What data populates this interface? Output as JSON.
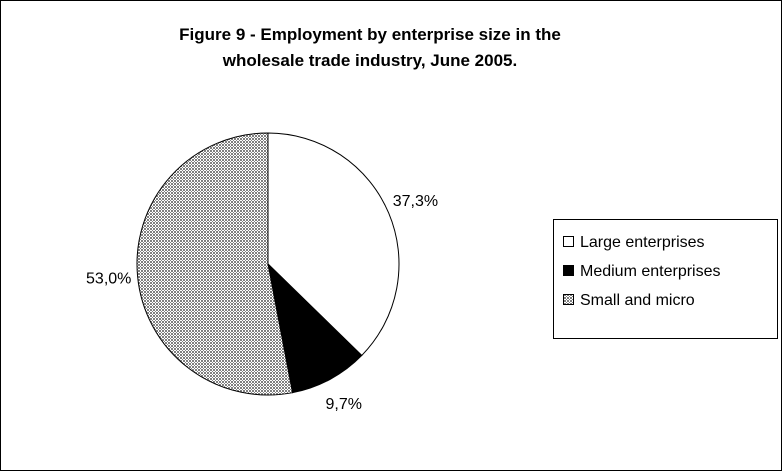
{
  "chart_data": {
    "type": "pie",
    "title": "Figure 9 - Employment by enterprise size in the wholesale trade industry, June 2005.",
    "categories": [
      "Large enterprises",
      "Medium enterprises",
      "Small and micro"
    ],
    "values": [
      37.3,
      9.7,
      53.0
    ],
    "value_labels": [
      "37,3%",
      "9,7%",
      "53,0%"
    ],
    "colors": [
      "#ffffff",
      "#000000",
      "#808080"
    ],
    "legend": "right"
  }
}
